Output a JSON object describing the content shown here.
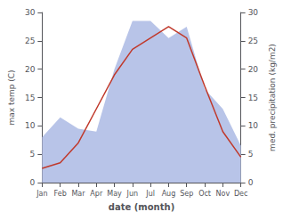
{
  "chart_data": {
    "type": "line",
    "xlabel": "date (month)",
    "ylabel": "max temp (C)",
    "y2label": "med. precipitation (kg/m2)",
    "categories": [
      "Jan",
      "Feb",
      "Mar",
      "Apr",
      "May",
      "Jun",
      "Jul",
      "Aug",
      "Sep",
      "Oct",
      "Nov",
      "Dec"
    ],
    "series": [
      {
        "type": "area",
        "color": "#b8c4e8",
        "axis": "y2",
        "values": [
          8.0,
          11.5,
          9.5,
          9.0,
          20.0,
          28.5,
          28.5,
          25.5,
          27.5,
          16.5,
          13.0,
          6.5
        ]
      },
      {
        "type": "line",
        "color": "#c0392b",
        "values": [
          2.5,
          3.5,
          7.0,
          13.0,
          19.0,
          23.5,
          25.5,
          27.5,
          25.5,
          17.0,
          9.0,
          4.5
        ]
      }
    ],
    "ylim": [
      0,
      30
    ],
    "yticks": [
      0,
      5,
      10,
      15,
      20,
      25,
      30
    ],
    "y2lim": [
      0,
      30
    ],
    "y2ticks": [
      0,
      5,
      10,
      15,
      20,
      25,
      30
    ],
    "grid": false
  }
}
